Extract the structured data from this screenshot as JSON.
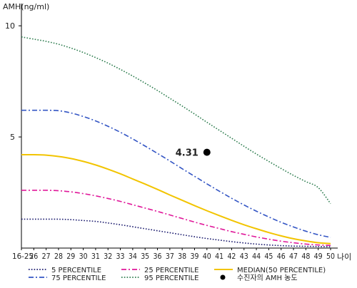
{
  "chart_data": {
    "type": "line",
    "ylabel": "AMH(ng/ml)",
    "xlabel": "나이",
    "ylim": [
      0,
      11
    ],
    "yticks": [
      5,
      10
    ],
    "x": [
      "16-25",
      "26",
      "27",
      "28",
      "29",
      "30",
      "31",
      "32",
      "33",
      "34",
      "35",
      "36",
      "37",
      "38",
      "39",
      "40",
      "41",
      "42",
      "43",
      "44",
      "45",
      "46",
      "47",
      "48",
      "49",
      "50"
    ],
    "grid": false,
    "legend_position": "bottom",
    "series": [
      {
        "name": "5 PERCENTILE",
        "color": "#1a1a6e",
        "dash": "dot",
        "values": [
          1.3,
          1.3,
          1.3,
          1.3,
          1.28,
          1.24,
          1.2,
          1.13,
          1.05,
          0.96,
          0.87,
          0.78,
          0.69,
          0.6,
          0.51,
          0.43,
          0.36,
          0.29,
          0.23,
          0.18,
          0.14,
          0.11,
          0.09,
          0.08,
          0.07,
          0.06
        ]
      },
      {
        "name": "25 PERCENTILE",
        "color": "#e0189a",
        "dash": "dashdot",
        "values": [
          2.6,
          2.6,
          2.6,
          2.58,
          2.53,
          2.45,
          2.35,
          2.23,
          2.1,
          1.95,
          1.8,
          1.65,
          1.49,
          1.33,
          1.17,
          1.02,
          0.88,
          0.74,
          0.62,
          0.5,
          0.4,
          0.31,
          0.24,
          0.18,
          0.14,
          0.12
        ]
      },
      {
        "name": "MEDIAN(50 PERCENTILE)",
        "color": "#f2c400",
        "dash": "solid",
        "values": [
          4.2,
          4.2,
          4.18,
          4.12,
          4.03,
          3.9,
          3.74,
          3.55,
          3.34,
          3.11,
          2.88,
          2.64,
          2.39,
          2.15,
          1.91,
          1.68,
          1.46,
          1.25,
          1.05,
          0.87,
          0.7,
          0.55,
          0.42,
          0.32,
          0.24,
          0.2
        ]
      },
      {
        "name": "75 PERCENTILE",
        "color": "#3355c4",
        "dash": "dashdot",
        "values": [
          6.2,
          6.2,
          6.2,
          6.18,
          6.08,
          5.92,
          5.72,
          5.48,
          5.21,
          4.91,
          4.59,
          4.26,
          3.92,
          3.57,
          3.23,
          2.89,
          2.56,
          2.24,
          1.94,
          1.66,
          1.4,
          1.16,
          0.95,
          0.76,
          0.6,
          0.48
        ]
      },
      {
        "name": "95 PERCENTILE",
        "color": "#2e7d4f",
        "dash": "dot",
        "values": [
          9.5,
          9.4,
          9.3,
          9.17,
          9.0,
          8.8,
          8.57,
          8.32,
          8.04,
          7.74,
          7.42,
          7.09,
          6.74,
          6.39,
          6.03,
          5.66,
          5.3,
          4.94,
          4.58,
          4.23,
          3.9,
          3.58,
          3.27,
          2.99,
          2.72,
          2.0
        ]
      }
    ],
    "patient": {
      "name": "수진자의 AMH 농도",
      "x": "40",
      "value": 4.31,
      "label": "4.31",
      "color": "#000000"
    }
  }
}
